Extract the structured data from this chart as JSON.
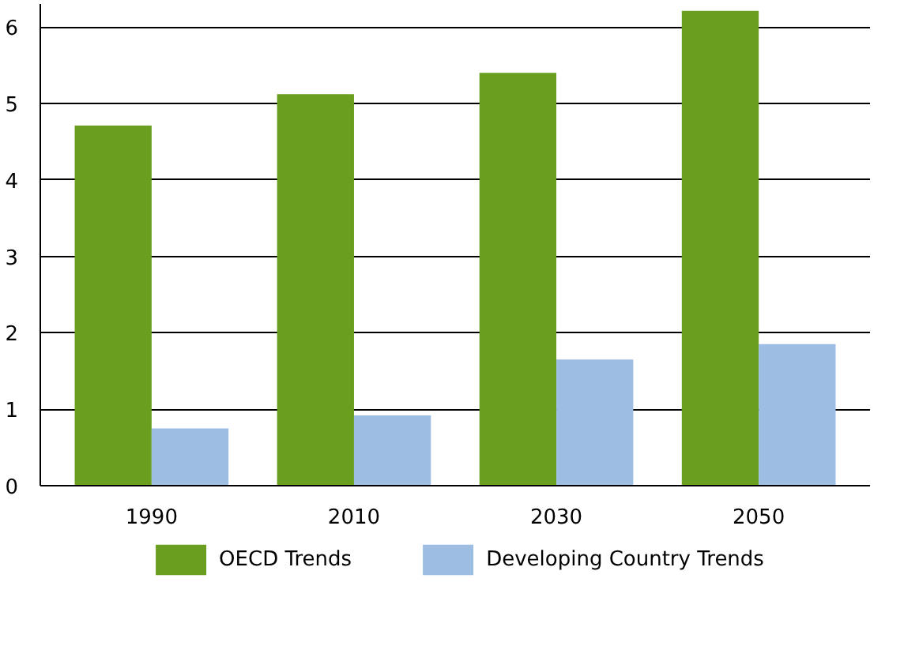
{
  "chart_data": {
    "type": "bar",
    "categories": [
      "1990",
      "2010",
      "2030",
      "2050"
    ],
    "series": [
      {
        "name": "OECD Trends",
        "color": "#6a9e1f",
        "values": [
          4.71,
          5.12,
          5.4,
          6.21
        ]
      },
      {
        "name": "Developing Country Trends",
        "color": "#9dbde3",
        "values": [
          0.75,
          0.92,
          1.65,
          1.85
        ]
      }
    ],
    "ylim": [
      0,
      6.3
    ],
    "yticks": [
      0,
      1,
      2,
      3,
      4,
      5,
      6
    ],
    "grid": "y",
    "legend": "bottom"
  }
}
